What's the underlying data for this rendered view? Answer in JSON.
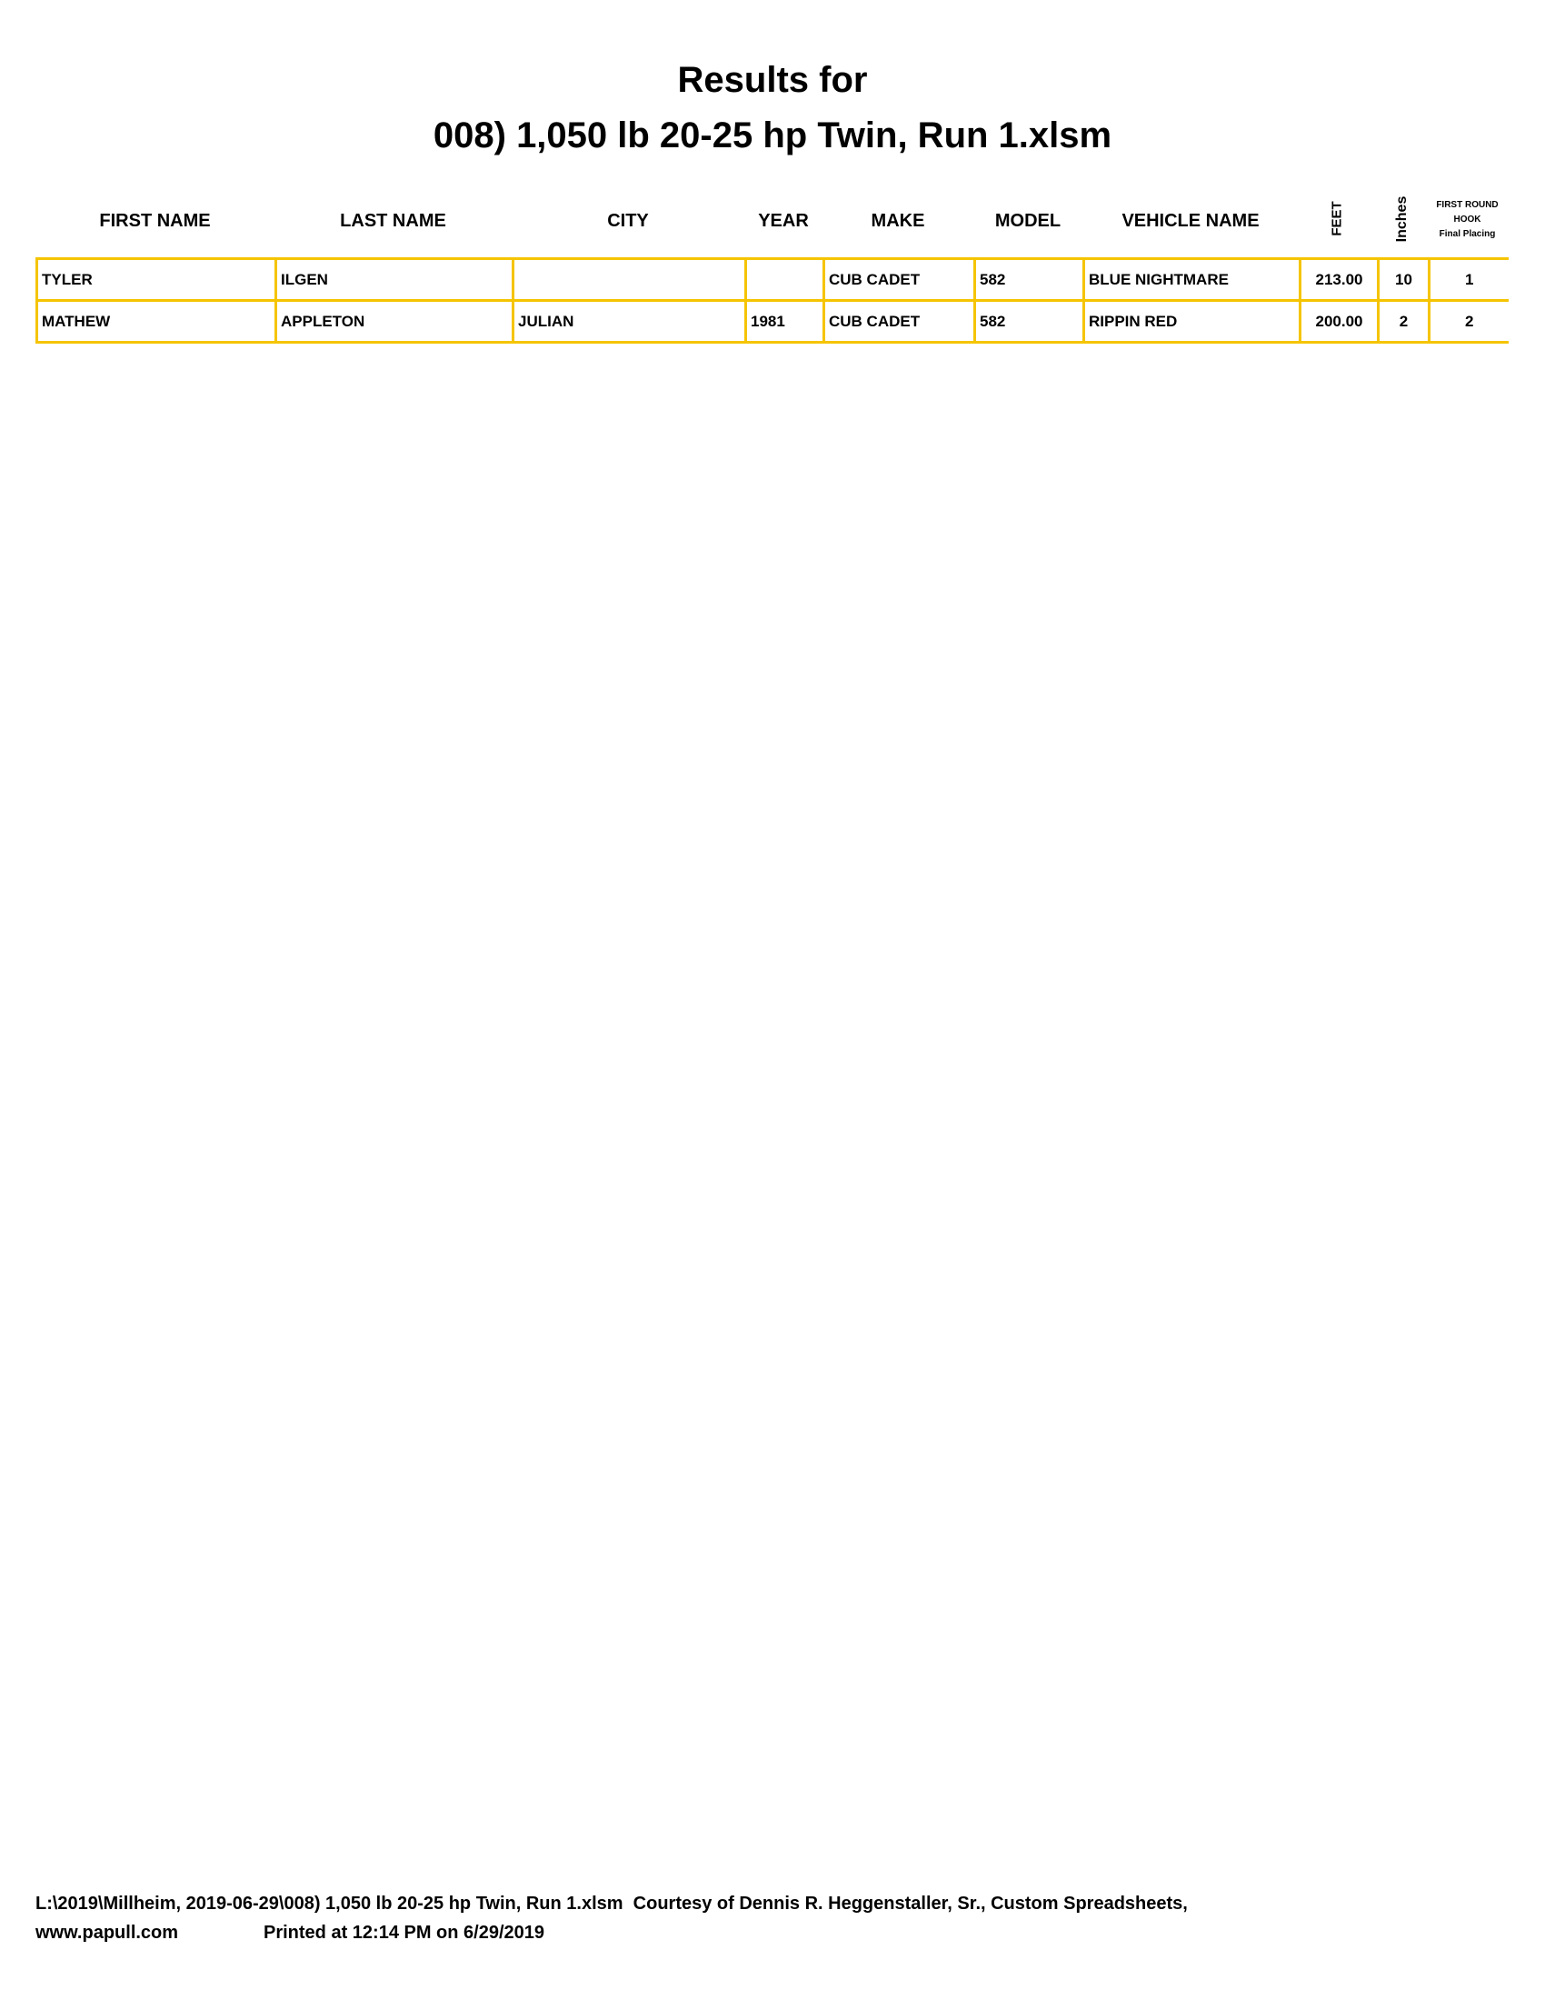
{
  "title": {
    "line1": "Results for",
    "line2": "008) 1,050 lb 20-25 hp Twin, Run 1.xlsm"
  },
  "columns": [
    "FIRST NAME",
    "LAST NAME",
    "CITY",
    "YEAR",
    "MAKE",
    "MODEL",
    "VEHICLE NAME",
    "FEET",
    "Inches"
  ],
  "placing_header": {
    "line1": "FIRST ROUND",
    "line2": "HOOK",
    "line3": "Final Placing"
  },
  "rows": [
    [
      "TYLER",
      "ILGEN",
      "",
      "",
      "CUB CADET",
      "582",
      "BLUE NIGHTMARE",
      "213.00",
      "10",
      "1"
    ],
    [
      "MATHEW",
      "APPLETON",
      "JULIAN",
      "1981",
      "CUB CADET",
      "582",
      "RIPPIN RED",
      "200.00",
      "2",
      "2"
    ]
  ],
  "footer": {
    "line1": "L:\\2019\\Millheim, 2019-06-29\\008) 1,050 lb 20-25 hp Twin, Run 1.xlsm  Courtesy of Dennis R. Heggenstaller, Sr., Custom Spreadsheets,",
    "website": "www.papull.com",
    "printed": "Printed at 12:14 PM on 6/29/2019"
  },
  "colors": {
    "grid": "#f5c400"
  }
}
